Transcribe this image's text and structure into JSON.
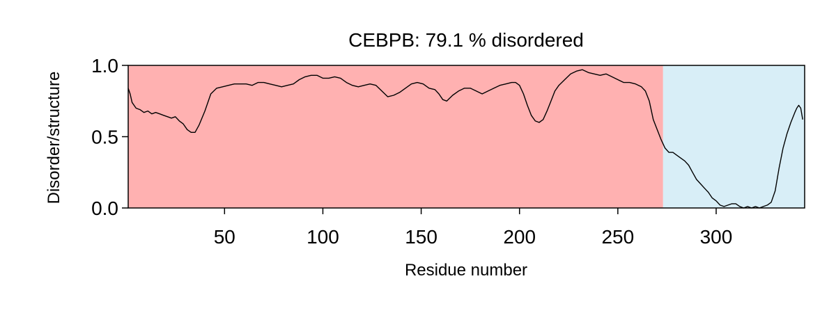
{
  "chart_data": {
    "type": "line",
    "title": "CEBPB: 79.1 % disordered",
    "xlabel": "Residue number",
    "ylabel": "Disorder/structure",
    "xlim": [
      1,
      345
    ],
    "ylim": [
      0.0,
      1.0
    ],
    "xticks": [
      50,
      100,
      150,
      200,
      250,
      300
    ],
    "yticks": [
      0.0,
      0.5,
      1.0
    ],
    "xtick_labels": [
      "50",
      "100",
      "150",
      "200",
      "250",
      "300"
    ],
    "ytick_labels": [
      "0.0",
      "0.5",
      "1.0"
    ],
    "grid": false,
    "regions": [
      {
        "name": "disordered",
        "start": 1,
        "end": 273,
        "color": "#ffb1b1"
      },
      {
        "name": "structured",
        "start": 273,
        "end": 345,
        "color": "#d8eef7"
      }
    ],
    "line_color": "#000000",
    "series": [
      {
        "x": [
          1,
          2,
          3,
          5,
          7,
          9,
          11,
          13,
          15,
          17,
          19,
          21,
          23,
          25,
          27,
          29,
          31,
          33,
          35,
          37,
          40,
          43,
          46,
          49,
          52,
          55,
          58,
          61,
          64,
          67,
          70,
          73,
          76,
          79,
          82,
          85,
          88,
          91,
          94,
          97,
          100,
          103,
          106,
          109,
          112,
          115,
          118,
          121,
          124,
          127,
          130,
          133,
          136,
          139,
          142,
          145,
          148,
          151,
          154,
          157,
          159,
          161,
          163,
          166,
          169,
          172,
          175,
          178,
          181,
          184,
          187,
          190,
          193,
          196,
          198,
          200,
          202,
          204,
          206,
          208,
          210,
          212,
          214,
          216,
          218,
          220,
          223,
          226,
          229,
          232,
          235,
          238,
          241,
          244,
          247,
          250,
          253,
          256,
          259,
          262,
          264,
          266,
          268,
          270,
          272,
          274,
          276,
          278,
          280,
          282,
          284,
          286,
          288,
          290,
          292,
          294,
          296,
          298,
          300,
          302,
          304,
          306,
          308,
          310,
          312,
          314,
          316,
          318,
          320,
          322,
          324,
          326,
          328,
          330,
          332,
          334,
          336,
          338,
          340,
          341,
          342,
          343,
          344
        ],
        "y": [
          0.84,
          0.8,
          0.74,
          0.7,
          0.69,
          0.67,
          0.68,
          0.66,
          0.67,
          0.66,
          0.65,
          0.64,
          0.63,
          0.64,
          0.61,
          0.59,
          0.55,
          0.53,
          0.53,
          0.58,
          0.68,
          0.8,
          0.84,
          0.85,
          0.86,
          0.87,
          0.87,
          0.87,
          0.86,
          0.88,
          0.88,
          0.87,
          0.86,
          0.85,
          0.86,
          0.87,
          0.9,
          0.92,
          0.93,
          0.93,
          0.91,
          0.91,
          0.92,
          0.91,
          0.88,
          0.86,
          0.85,
          0.86,
          0.87,
          0.86,
          0.82,
          0.78,
          0.79,
          0.81,
          0.84,
          0.87,
          0.88,
          0.87,
          0.84,
          0.83,
          0.8,
          0.76,
          0.75,
          0.79,
          0.82,
          0.84,
          0.84,
          0.82,
          0.8,
          0.82,
          0.84,
          0.86,
          0.87,
          0.88,
          0.88,
          0.86,
          0.8,
          0.72,
          0.65,
          0.61,
          0.6,
          0.62,
          0.68,
          0.75,
          0.82,
          0.86,
          0.9,
          0.94,
          0.96,
          0.97,
          0.95,
          0.94,
          0.93,
          0.94,
          0.92,
          0.9,
          0.88,
          0.88,
          0.87,
          0.85,
          0.82,
          0.75,
          0.62,
          0.55,
          0.48,
          0.42,
          0.39,
          0.39,
          0.37,
          0.35,
          0.33,
          0.3,
          0.25,
          0.2,
          0.17,
          0.14,
          0.11,
          0.07,
          0.05,
          0.02,
          0.01,
          0.02,
          0.03,
          0.03,
          0.01,
          0.0,
          0.01,
          0.0,
          0.01,
          0.0,
          0.01,
          0.02,
          0.04,
          0.12,
          0.28,
          0.42,
          0.52,
          0.6,
          0.67,
          0.7,
          0.72,
          0.7,
          0.62
        ]
      }
    ]
  }
}
